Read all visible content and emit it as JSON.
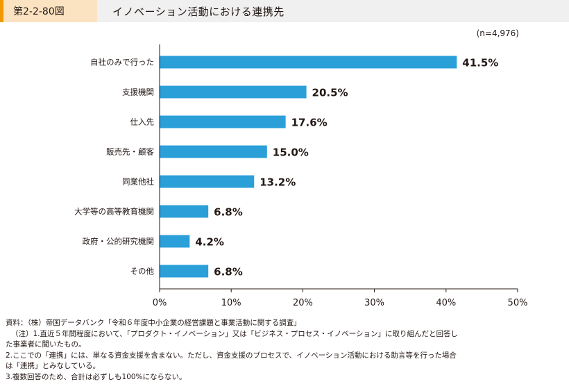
{
  "header": {
    "figure_label": "第2-2-80図",
    "title": "イノベーション活動における連携先"
  },
  "chart_data": {
    "type": "bar",
    "orientation": "horizontal",
    "sample_note": "(n=4,976)",
    "categories": [
      "自社のみで行った",
      "支援機関",
      "仕入先",
      "販売先・顧客",
      "同業他社",
      "大学等の高等教育機関",
      "政府・公的研究機関",
      "その他"
    ],
    "values": [
      41.5,
      20.5,
      17.6,
      15.0,
      13.2,
      6.8,
      4.2,
      6.8
    ],
    "value_labels": [
      "41.5%",
      "20.5%",
      "17.6%",
      "15.0%",
      "13.2%",
      "6.8%",
      "4.2%",
      "6.8%"
    ],
    "xlim": [
      0,
      50
    ],
    "xticks": [
      "0%",
      "10%",
      "20%",
      "30%",
      "40%",
      "50%"
    ],
    "bar_color": "#2a9fd8",
    "grid": false
  },
  "notes": [
    "資料：（株）帝国データバンク「令和６年度中小企業の経営課題と事業活動に関する調査」",
    "（注）1.直近５年間程度において、「プロダクト・イノベーション」又は「ビジネス・プロセス・イノベーション」に取り組んだと回答し",
    "た事業者に聞いたもの。",
    "2.ここでの「連携」には、単なる資金支援を含まない。ただし、資金支援のプロセスで、イノベーション活動における助言等を行った場合",
    "は「連携」とみなしている。",
    "3.複数回答のため、合計は必ずしも100%にならない。"
  ]
}
